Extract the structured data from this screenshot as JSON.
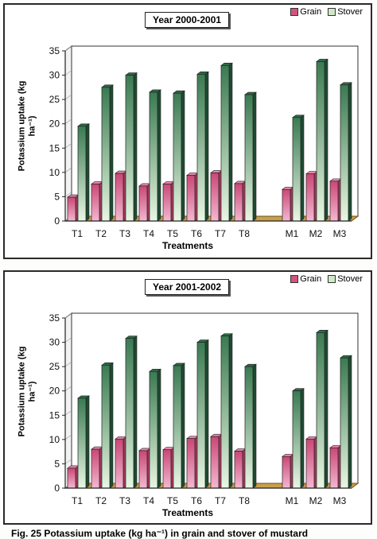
{
  "chart_data": [
    {
      "type": "bar",
      "title": "Year 2000-2001",
      "xlabel": "Treatments",
      "ylabel": "Potassium uptake (kg ha⁻¹)",
      "categories": [
        "T1",
        "T2",
        "T3",
        "T4",
        "T5",
        "T6",
        "T7",
        "T8",
        "",
        "M1",
        "M2",
        "M3"
      ],
      "series": [
        {
          "name": "Grain",
          "color": "#d2557e",
          "values": [
            4.9,
            7.6,
            9.8,
            7.2,
            7.6,
            9.4,
            9.9,
            7.7,
            null,
            6.5,
            9.7,
            8.2
          ]
        },
        {
          "name": "Stover",
          "color": "#3d7a55",
          "values": [
            19.5,
            27.5,
            30.0,
            26.5,
            26.3,
            30.2,
            32.0,
            26.0,
            null,
            21.3,
            32.8,
            28.0
          ]
        }
      ],
      "ylim": [
        0,
        35
      ],
      "yticks": [
        0,
        5,
        10,
        15,
        20,
        25,
        30,
        35
      ],
      "legend": "top-right",
      "grid": false
    },
    {
      "type": "bar",
      "title": "Year 2001-2002",
      "xlabel": "Treatments",
      "ylabel": "Potassium uptake (kg ha⁻¹)",
      "categories": [
        "T1",
        "T2",
        "T3",
        "T4",
        "T5",
        "T6",
        "T7",
        "T8",
        "",
        "M1",
        "M2",
        "M3"
      ],
      "series": [
        {
          "name": "Grain",
          "color": "#d2557e",
          "values": [
            4.1,
            8.0,
            10.1,
            7.7,
            7.9,
            10.2,
            10.6,
            7.6,
            null,
            6.5,
            10.1,
            8.3
          ]
        },
        {
          "name": "Stover",
          "color": "#3d7a55",
          "values": [
            18.5,
            25.3,
            30.8,
            24.0,
            25.2,
            30.0,
            31.3,
            25.0,
            null,
            20.0,
            32.0,
            26.8
          ]
        }
      ],
      "ylim": [
        0,
        35
      ],
      "yticks": [
        0,
        5,
        10,
        15,
        20,
        25,
        30,
        35
      ],
      "legend": "top-right",
      "grid": false
    }
  ],
  "caption": "Fig. 25   Potassium uptake (kg ha⁻¹) in grain and stover of mustard"
}
